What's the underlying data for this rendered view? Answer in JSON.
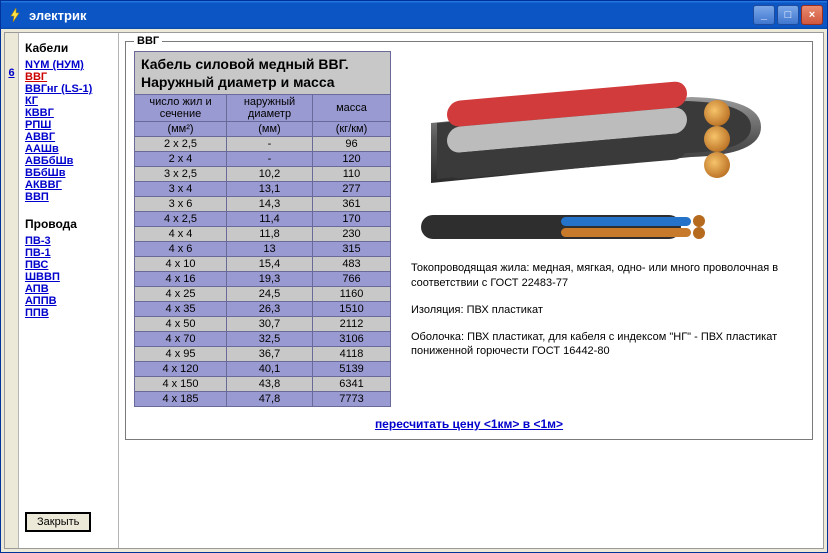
{
  "window": {
    "title": "электрик",
    "min_title": "_",
    "max_title": "□",
    "close_title": "×"
  },
  "left_edge_label": "6",
  "sidebar": {
    "cables_title": "Кабели",
    "wires_title": "Провода",
    "cables": [
      {
        "label": "NYM (НУМ)",
        "active": false
      },
      {
        "label": "ВВГ",
        "active": true
      },
      {
        "label": "ВВГнг (LS-1)",
        "active": false
      },
      {
        "label": "КГ",
        "active": false
      },
      {
        "label": "КВВГ",
        "active": false
      },
      {
        "label": "РПШ",
        "active": false
      },
      {
        "label": "АВВГ",
        "active": false
      },
      {
        "label": "ААШв",
        "active": false
      },
      {
        "label": "АВБбШв",
        "active": false
      },
      {
        "label": "ВБбШв",
        "active": false
      },
      {
        "label": "АКВВГ",
        "active": false
      },
      {
        "label": "ВВП",
        "active": false
      }
    ],
    "wires": [
      {
        "label": "ПВ-3"
      },
      {
        "label": "ПВ-1"
      },
      {
        "label": "ПВС"
      },
      {
        "label": "ШВВП"
      },
      {
        "label": "АПВ"
      },
      {
        "label": "АППВ"
      },
      {
        "label": "ППВ"
      }
    ],
    "close_label": "Закрыть"
  },
  "group_legend": "ВВГ",
  "table": {
    "title_line1": "Кабель силовой медный ВВГ.",
    "title_line2": "Наружный диаметр и масса",
    "head": {
      "col1": "число жил и сечение",
      "col2": "наружный диаметр",
      "col3": "масса",
      "u1": "(мм²)",
      "u2": "(мм)",
      "u3": "(кг/км)"
    },
    "rows": [
      {
        "a": "2 х 2,5",
        "b": "-",
        "c": "96"
      },
      {
        "a": "2 х 4",
        "b": "-",
        "c": "120"
      },
      {
        "a": "3 х 2,5",
        "b": "10,2",
        "c": "110"
      },
      {
        "a": "3 х 4",
        "b": "13,1",
        "c": "277"
      },
      {
        "a": "3 х 6",
        "b": "14,3",
        "c": "361"
      },
      {
        "a": "4 х 2,5",
        "b": "11,4",
        "c": "170"
      },
      {
        "a": "4 х 4",
        "b": "11,8",
        "c": "230"
      },
      {
        "a": "4 х 6",
        "b": "13",
        "c": "315"
      },
      {
        "a": "4 х 10",
        "b": "15,4",
        "c": "483"
      },
      {
        "a": "4 х 16",
        "b": "19,3",
        "c": "766"
      },
      {
        "a": "4 х 25",
        "b": "24,5",
        "c": "1160"
      },
      {
        "a": "4 х 35",
        "b": "26,3",
        "c": "1510"
      },
      {
        "a": "4 х 50",
        "b": "30,7",
        "c": "2112"
      },
      {
        "a": "4 х 70",
        "b": "32,5",
        "c": "3106"
      },
      {
        "a": "4 х 95",
        "b": "36,7",
        "c": "4118"
      },
      {
        "a": "4 х 120",
        "b": "40,1",
        "c": "5139"
      },
      {
        "a": "4 х 150",
        "b": "43,8",
        "c": "6341"
      },
      {
        "a": "4 х 185",
        "b": "47,8",
        "c": "7773"
      }
    ]
  },
  "desc": {
    "p1": "Токопроводящая жила: медная, мягкая, одно- или много проволочная в соответствии с ГОСТ 22483-77",
    "p2": "Изоляция: ПВХ пластикат",
    "p3": "Оболочка: ПВХ пластикат, для кабеля с индексом \"НГ\" - ПВХ пластикат пониженной горючести ГОСТ 16442-80"
  },
  "recalc_label": "пересчитать цену <1км> в <1м>",
  "colors": {
    "titlebar": "#0b55c4",
    "header_bg": "#9a9ad2",
    "row_odd": "#c8c8c8",
    "row_even": "#9a9ad2",
    "border": "#6a6a9a",
    "link": "#0000cc",
    "link_active": "#cc0000",
    "window_bg": "#ece9d8"
  }
}
